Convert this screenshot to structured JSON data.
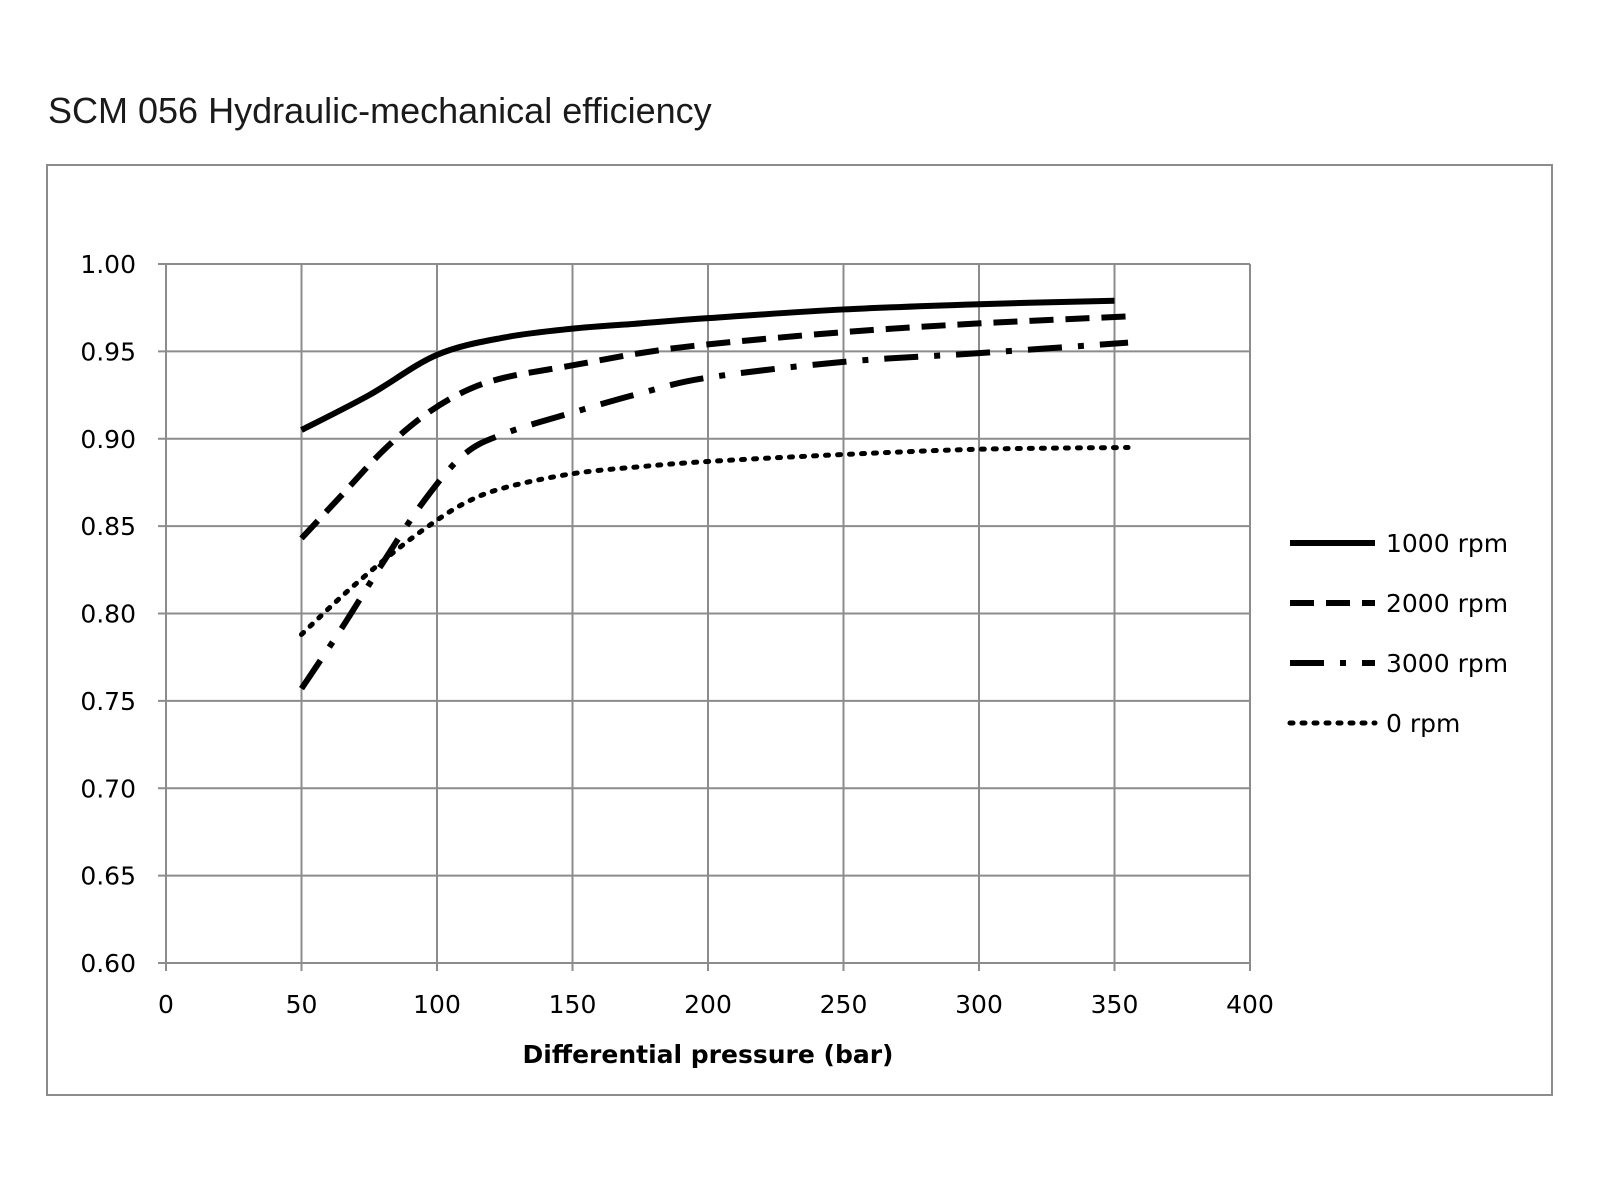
{
  "title": "SCM 056 Hydraulic-mechanical efficiency",
  "chart_data": {
    "type": "line",
    "title": "SCM 056 Hydraulic-mechanical efficiency",
    "xlabel": "Differential pressure (bar)",
    "ylabel": "",
    "xlim": [
      0,
      400
    ],
    "ylim": [
      0.6,
      1.0
    ],
    "x_ticks": [
      "0",
      "50",
      "100",
      "150",
      "200",
      "250",
      "300",
      "350",
      "400"
    ],
    "y_ticks": [
      "0.60",
      "0.65",
      "0.70",
      "0.75",
      "0.80",
      "0.85",
      "0.90",
      "0.95",
      "1.00"
    ],
    "grid": true,
    "legend_position": "right",
    "series": [
      {
        "name": "1000 rpm",
        "style": "solid",
        "x": [
          50,
          75,
          100,
          125,
          150,
          175,
          200,
          250,
          300,
          350
        ],
        "y": [
          0.905,
          0.925,
          0.948,
          0.958,
          0.963,
          0.966,
          0.969,
          0.974,
          0.977,
          0.979
        ]
      },
      {
        "name": "2000 rpm",
        "style": "dash",
        "x": [
          50,
          65,
          80,
          95,
          110,
          125,
          150,
          175,
          200,
          250,
          300,
          355
        ],
        "y": [
          0.843,
          0.868,
          0.893,
          0.913,
          0.927,
          0.935,
          0.942,
          0.949,
          0.954,
          0.961,
          0.966,
          0.97
        ]
      },
      {
        "name": "3000 rpm",
        "style": "dashdot",
        "x": [
          50,
          65,
          80,
          95,
          110,
          125,
          150,
          175,
          200,
          250,
          300,
          355
        ],
        "y": [
          0.757,
          0.792,
          0.829,
          0.864,
          0.891,
          0.903,
          0.915,
          0.926,
          0.935,
          0.944,
          0.949,
          0.955
        ]
      },
      {
        "name": "0 rpm",
        "style": "dot",
        "x": [
          50,
          65,
          80,
          95,
          110,
          125,
          150,
          175,
          200,
          250,
          300,
          355
        ],
        "y": [
          0.788,
          0.81,
          0.83,
          0.848,
          0.863,
          0.872,
          0.88,
          0.884,
          0.887,
          0.891,
          0.894,
          0.895
        ]
      }
    ]
  }
}
